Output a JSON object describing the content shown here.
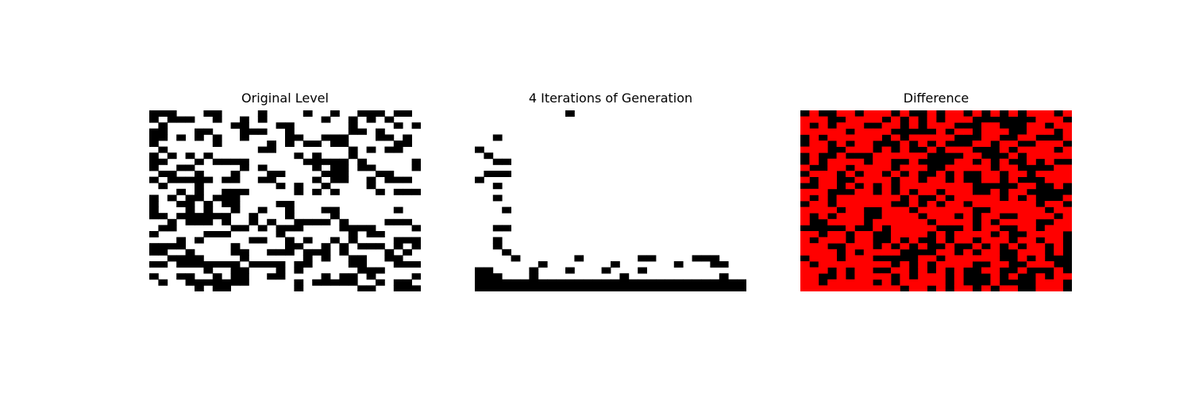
{
  "panels": [
    {
      "title": "Original Level"
    },
    {
      "title": "4 Iterations of Generation"
    },
    {
      "title": "Difference"
    }
  ],
  "chart_data": [
    {
      "type": "heatmap",
      "title": "Original Level",
      "colors": {
        "filled": "#000000",
        "empty": "#ffffff"
      },
      "grid": [
        "111000110000100001001001110110",
        "101110010010100000010010101000",
        "010000000110001100000010000101",
        "110001100011100100000011010000",
        "110101010010000110011100011010",
        "100000010000010101101100000110",
        "010000000000110000000010101100",
        "101010100000000010100010000000",
        "110001011110000001111101000001",
        "100110000010100000101101100001",
        "011001000100011000011100011000",
        "101111101100110000101100101110",
        "010001000000001010010000100000",
        "000101001110000010101000010111",
        "101011011100000000000000000000",
        "100110101100001100000000000000",
        "100010100100100100011000000100",
        "110111111001000100001000000000",
        "001011101001010011110100001110",
        "011000000110101110000111100001",
        "100000111000001000000010110000",
        "000101000001100101001010000111",
        "111100000100000110010101110101",
        "110010000110011101110100001010",
        "001111000010000001010011001100",
        "110111111101111011000011000111",
        "000000100110001010000001110000",
        "100110010110011000010110100001",
        "010011111110000010111110010110",
        "000001011000000010000001100111"
      ]
    },
    {
      "type": "heatmap",
      "title": "4 Iterations of Generation",
      "colors": {
        "filled": "#000000",
        "empty": "#ffffff"
      },
      "grid": [
        "000000000010000000000000000000",
        "000000000000000000000000000000",
        "000000000000000000000000000000",
        "000000000000000000000000000000",
        "001000000000000000000000000000",
        "000000000000000000000000000000",
        "100000000000000000000000000000",
        "010000000000000000000000000000",
        "001100000000000000000000000000",
        "000000000000000000000000000000",
        "011100000000000000000000000000",
        "100000000000000000000000000000",
        "001000000000000000000000000000",
        "000000000000000000000000000000",
        "001000000000000000000000000000",
        "000000000000000000000000000000",
        "000100000000000000000000000000",
        "000000000000000000000000000000",
        "000000000000000000000000000000",
        "001100000000000000000000000000",
        "000000000000000000000000000000",
        "001000000000000000000000000000",
        "001000000000000000000000000000",
        "000100000000000000000000000000",
        "000010000001000000110000111000",
        "000000010000000100000010001100",
        "110000100010001000100000000000",
        "111000100000000010000000000100",
        "111111111111111111111111111111",
        "111111111111111111111111111111"
      ]
    },
    {
      "type": "heatmap",
      "title": "Difference",
      "colors": {
        "filled": "#ff0000",
        "empty": "#000000"
      },
      "grid": [
        "010011011101001011010101011101",
        "111001111010101011100000001110",
        "101011100110101110001100011011",
        "111110111100000101101110011101",
        "010111111010111110001100110001",
        "011010110001010100011011001110",
        "111001110101001011100010111101",
        "010010001111110000110001011111",
        "010111101100100001101010010100",
        "100110111101110011111011000011",
        "011101011010100101001101101111",
        "101100111101101101001101000111",
        "001101010101111111100000110010",
        "111000110101011011100101100000",
        "101011111110100101111101010001",
        "011011111100101011011111110110",
        "111101100111011111100111111011",
        "101011100111101110101100111101",
        "100111101111110111101011110011",
        "000001001011111000101100110111",
        "110110110011110101111010011110",
        "101110110010100101101110110110",
        "111001110101010010010101011010",
        "111101011110000110101100111010",
        "011101110000011011111100101000",
        "101111111101010111100110011100",
        "111010110011010101001100100010",
        "110010111101011101000101001011",
        "110111110101111101000100001110",
        "111111111110110101101011001110"
      ]
    }
  ]
}
